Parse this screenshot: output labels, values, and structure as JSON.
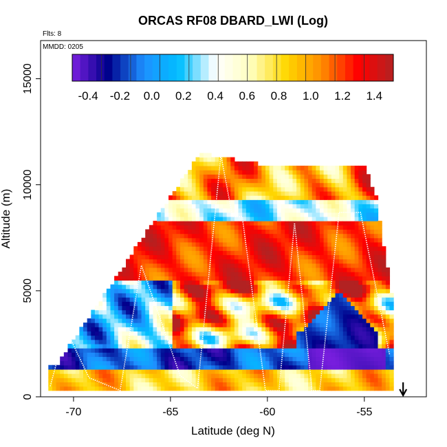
{
  "page": {
    "title": "ORCAS RF08 DBARD_LWI (Log)",
    "flts_label": "Flts: 8",
    "mmdd_label": "MMDD: 0205"
  },
  "colorbar": {
    "tick_labels": [
      "-0.4",
      "-0.2",
      "0.0",
      "0.2",
      "0.4",
      "0.6",
      "0.8",
      "1.0",
      "1.2",
      "1.4"
    ],
    "range": [
      -0.5,
      1.52
    ],
    "colors": [
      "#7B1FE0",
      "#00008B",
      "#1E90FF",
      "#00BFFF",
      "#FFFFFF",
      "#FFFFC0",
      "#FFD700",
      "#FF8C00",
      "#FF0000",
      "#B22222"
    ]
  },
  "chart_data": {
    "type": "heatmap",
    "title": "ORCAS RF08 DBARD_LWI (Log)",
    "xlabel": "Latitude (deg N)",
    "ylabel": "Altitude (m)",
    "xlim": [
      -71.7,
      -51.8
    ],
    "ylim": [
      0,
      16800
    ],
    "xticks": [
      -70,
      -65,
      -60,
      -55
    ],
    "xtick_labels": [
      "-70",
      "-65",
      "-60",
      "-55"
    ],
    "yticks": [
      0,
      5000,
      10000,
      15000
    ],
    "ytick_labels": [
      "0",
      "5000",
      "10000",
      "15000"
    ],
    "value_range": [
      -0.5,
      1.52
    ],
    "description_regions": [
      {
        "lat_range": [
          -71.3,
          -53.5
        ],
        "alt_range": [
          300,
          1200
        ],
        "value": 0.9
      },
      {
        "lat_range": [
          -71.3,
          -53.5
        ],
        "alt_range": [
          1200,
          2200
        ],
        "value": -0.3
      },
      {
        "lat_range": [
          -57.5,
          -54.5
        ],
        "alt_range": [
          2200,
          4800
        ],
        "value": -0.2
      },
      {
        "lat_range": [
          -64.0,
          -54.0
        ],
        "alt_range": [
          5500,
          8200
        ],
        "value": 1.3
      },
      {
        "lat_range": [
          -63.0,
          -53.5
        ],
        "alt_range": [
          8200,
          9200
        ],
        "value": 0.35
      },
      {
        "lat_range": [
          -63.5,
          -55.0
        ],
        "alt_range": [
          9200,
          11400
        ],
        "value": 0.9
      }
    ],
    "arrow_marker_lat": -53.0
  }
}
